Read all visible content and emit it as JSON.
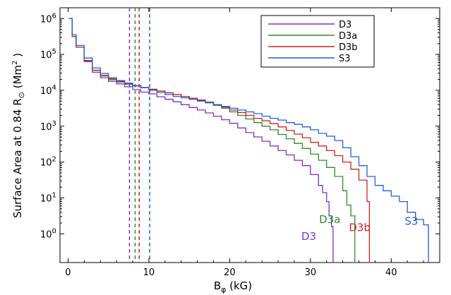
{
  "chart_data": {
    "type": "line",
    "xlabel_main": "B",
    "xlabel_sub": "φ",
    "xlabel_unit": " (kG)",
    "ylabel_prefix": "Surface Area at 0.84 R",
    "ylabel_sub": "⊙",
    "ylabel_unit_open": " (Mm",
    "ylabel_unit_sup": "2",
    "ylabel_unit_close": " )",
    "xlim": [
      -1,
      46
    ],
    "ylim_log10": [
      -0.8,
      6.3
    ],
    "y_log_scale": true,
    "x_ticks": [
      0,
      10,
      20,
      30,
      40
    ],
    "x_tick_labels": [
      "0",
      "10",
      "20",
      "30",
      "40"
    ],
    "y_ticks_log10": [
      0,
      1,
      2,
      3,
      4,
      5,
      6
    ],
    "y_tick_base": "10",
    "y_tick_exponents": [
      "0",
      "1",
      "2",
      "3",
      "4",
      "5",
      "6"
    ],
    "legend_position": "top-right",
    "series": [
      {
        "name": "D3",
        "color": "#7f2fd0",
        "threshold_x": 7.6,
        "end_label": "D3",
        "points": [
          [
            0.1,
            6.0
          ],
          [
            0.5,
            5.5
          ],
          [
            1,
            5.2
          ],
          [
            2,
            4.8
          ],
          [
            3,
            4.5
          ],
          [
            4,
            4.35
          ],
          [
            5,
            4.25
          ],
          [
            6,
            4.18
          ],
          [
            7,
            4.1
          ],
          [
            8,
            4.02
          ],
          [
            9,
            3.95
          ],
          [
            10,
            3.9
          ],
          [
            11,
            3.82
          ],
          [
            12,
            3.75
          ],
          [
            13,
            3.68
          ],
          [
            14,
            3.6
          ],
          [
            15,
            3.52
          ],
          [
            16,
            3.45
          ],
          [
            17,
            3.37
          ],
          [
            18,
            3.28
          ],
          [
            19,
            3.18
          ],
          [
            20,
            3.08
          ],
          [
            21,
            2.95
          ],
          [
            22,
            2.82
          ],
          [
            23,
            2.7
          ],
          [
            24,
            2.58
          ],
          [
            25,
            2.45
          ],
          [
            26,
            2.32
          ],
          [
            27,
            2.2
          ],
          [
            28,
            2.05
          ],
          [
            29,
            1.9
          ],
          [
            30,
            1.65
          ],
          [
            31,
            1.35
          ],
          [
            31.5,
            1.15
          ],
          [
            32,
            0.9
          ],
          [
            32.3,
            0.5
          ],
          [
            32.6,
            0.2
          ],
          [
            32.8,
            -0.5
          ]
        ]
      },
      {
        "name": "D3a",
        "color": "#2e8b2e",
        "threshold_x": 8.3,
        "end_label": "D3a",
        "points": [
          [
            0.1,
            6.0
          ],
          [
            0.5,
            5.5
          ],
          [
            1,
            5.2
          ],
          [
            2,
            4.82
          ],
          [
            3,
            4.55
          ],
          [
            4,
            4.4
          ],
          [
            5,
            4.3
          ],
          [
            6,
            4.23
          ],
          [
            7,
            4.17
          ],
          [
            8,
            4.12
          ],
          [
            9,
            4.07
          ],
          [
            10,
            4.02
          ],
          [
            11,
            3.98
          ],
          [
            12,
            3.93
          ],
          [
            13,
            3.88
          ],
          [
            14,
            3.83
          ],
          [
            15,
            3.78
          ],
          [
            16,
            3.72
          ],
          [
            17,
            3.65
          ],
          [
            18,
            3.58
          ],
          [
            19,
            3.5
          ],
          [
            20,
            3.4
          ],
          [
            21,
            3.3
          ],
          [
            22,
            3.2
          ],
          [
            23,
            3.1
          ],
          [
            24,
            3.0
          ],
          [
            25,
            2.9
          ],
          [
            26,
            2.77
          ],
          [
            27,
            2.65
          ],
          [
            28,
            2.52
          ],
          [
            29,
            2.38
          ],
          [
            30,
            2.22
          ],
          [
            31,
            2.05
          ],
          [
            32,
            1.85
          ],
          [
            33,
            1.6
          ],
          [
            34,
            1.2
          ],
          [
            34.5,
            0.8
          ],
          [
            35,
            0.5
          ],
          [
            35.5,
            0.5
          ]
        ]
      },
      {
        "name": "D3b",
        "color": "#d42020",
        "threshold_x": 8.8,
        "end_label": "D3b",
        "points": [
          [
            0.1,
            6.0
          ],
          [
            0.5,
            5.5
          ],
          [
            1,
            5.2
          ],
          [
            2,
            4.83
          ],
          [
            3,
            4.56
          ],
          [
            4,
            4.42
          ],
          [
            5,
            4.32
          ],
          [
            6,
            4.25
          ],
          [
            7,
            4.18
          ],
          [
            8,
            4.13
          ],
          [
            9,
            4.08
          ],
          [
            10,
            4.03
          ],
          [
            11,
            3.98
          ],
          [
            12,
            3.93
          ],
          [
            13,
            3.88
          ],
          [
            14,
            3.83
          ],
          [
            15,
            3.78
          ],
          [
            16,
            3.73
          ],
          [
            17,
            3.67
          ],
          [
            18,
            3.6
          ],
          [
            19,
            3.53
          ],
          [
            20,
            3.45
          ],
          [
            21,
            3.38
          ],
          [
            22,
            3.3
          ],
          [
            23,
            3.22
          ],
          [
            24,
            3.15
          ],
          [
            25,
            3.07
          ],
          [
            26,
            2.98
          ],
          [
            27,
            2.88
          ],
          [
            28,
            2.78
          ],
          [
            29,
            2.68
          ],
          [
            30,
            2.55
          ],
          [
            31,
            2.45
          ],
          [
            32,
            2.32
          ],
          [
            33,
            2.18
          ],
          [
            34,
            2.0
          ],
          [
            35,
            1.8
          ],
          [
            36,
            1.5
          ],
          [
            37,
            0.9
          ],
          [
            37.3,
            0.3
          ]
        ]
      },
      {
        "name": "S3",
        "color": "#1f5fe0",
        "threshold_x": 10.1,
        "end_label": "S3",
        "points": [
          [
            0.1,
            6.0
          ],
          [
            0.5,
            5.55
          ],
          [
            1,
            5.25
          ],
          [
            2,
            4.9
          ],
          [
            3,
            4.62
          ],
          [
            4,
            4.47
          ],
          [
            5,
            4.35
          ],
          [
            6,
            4.27
          ],
          [
            7,
            4.2
          ],
          [
            8,
            4.13
          ],
          [
            9,
            4.07
          ],
          [
            10,
            4.0
          ],
          [
            11,
            3.94
          ],
          [
            12,
            3.88
          ],
          [
            13,
            3.83
          ],
          [
            14,
            3.79
          ],
          [
            15,
            3.75
          ],
          [
            16,
            3.7
          ],
          [
            17,
            3.66
          ],
          [
            18,
            3.6
          ],
          [
            19,
            3.55
          ],
          [
            20,
            3.5
          ],
          [
            21,
            3.45
          ],
          [
            22,
            3.4
          ],
          [
            23,
            3.35
          ],
          [
            24,
            3.28
          ],
          [
            25,
            3.22
          ],
          [
            26,
            3.17
          ],
          [
            27,
            3.1
          ],
          [
            28,
            3.05
          ],
          [
            29,
            2.98
          ],
          [
            30,
            2.9
          ],
          [
            31,
            2.8
          ],
          [
            32,
            2.72
          ],
          [
            33,
            2.6
          ],
          [
            34,
            2.4
          ],
          [
            35,
            2.15
          ],
          [
            36,
            1.9
          ],
          [
            37,
            1.6
          ],
          [
            38,
            1.35
          ],
          [
            39,
            1.2
          ],
          [
            40,
            1.05
          ],
          [
            41,
            0.9
          ],
          [
            42,
            0.6
          ],
          [
            43,
            0.4
          ],
          [
            44,
            0.25
          ],
          [
            44.6,
            0.25
          ]
        ]
      }
    ]
  }
}
